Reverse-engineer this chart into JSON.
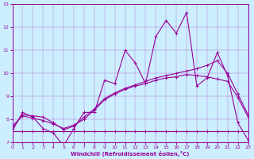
{
  "xlabel": "Windchill (Refroidissement éolien,°C)",
  "bg_color": "#cceeff",
  "line_color": "#990099",
  "xlim": [
    0,
    23
  ],
  "ylim": [
    7,
    13
  ],
  "xticks": [
    0,
    1,
    2,
    3,
    4,
    5,
    6,
    7,
    8,
    9,
    10,
    11,
    12,
    13,
    14,
    15,
    16,
    17,
    18,
    19,
    20,
    21,
    22,
    23
  ],
  "yticks": [
    7,
    8,
    9,
    10,
    11,
    12,
    13
  ],
  "series1_x": [
    0,
    1,
    2,
    3,
    4,
    5,
    6,
    7,
    8,
    9,
    10,
    11,
    12,
    13,
    14,
    15,
    16,
    17,
    18,
    19,
    20,
    21,
    22,
    23
  ],
  "series1_y": [
    7.5,
    8.3,
    8.1,
    7.6,
    7.4,
    6.85,
    7.6,
    8.3,
    8.3,
    9.7,
    9.55,
    11.0,
    10.45,
    9.55,
    11.6,
    12.3,
    11.75,
    12.65,
    9.45,
    9.8,
    10.9,
    9.9,
    7.85,
    7.1
  ],
  "series2_x": [
    0,
    1,
    2,
    3,
    4,
    5,
    6,
    7,
    8,
    9,
    10,
    11,
    12,
    13,
    14,
    15,
    16,
    17,
    18,
    19,
    20,
    21,
    22,
    23
  ],
  "series2_y": [
    7.6,
    8.2,
    8.15,
    8.1,
    7.85,
    7.55,
    7.7,
    8.1,
    8.45,
    8.9,
    9.15,
    9.35,
    9.5,
    9.65,
    9.8,
    9.9,
    10.0,
    10.1,
    10.2,
    10.35,
    10.55,
    10.0,
    9.1,
    8.2
  ],
  "series3_x": [
    0,
    1,
    2,
    3,
    4,
    5,
    6,
    7,
    8,
    9,
    10,
    11,
    12,
    13,
    14,
    15,
    16,
    17,
    18,
    19,
    20,
    21,
    22,
    23
  ],
  "series3_y": [
    7.7,
    8.15,
    8.05,
    7.95,
    7.8,
    7.6,
    7.75,
    8.0,
    8.4,
    8.85,
    9.1,
    9.3,
    9.45,
    9.55,
    9.7,
    9.8,
    9.85,
    9.95,
    9.9,
    9.85,
    9.75,
    9.65,
    8.95,
    8.1
  ],
  "series4_x": [
    0,
    1,
    2,
    3,
    4,
    5,
    6,
    7,
    8,
    9,
    10,
    11,
    12,
    13,
    14,
    15,
    16,
    17,
    18,
    19,
    20,
    21,
    22,
    23
  ],
  "series4_y": [
    7.5,
    7.5,
    7.5,
    7.5,
    7.5,
    7.5,
    7.5,
    7.5,
    7.5,
    7.5,
    7.5,
    7.5,
    7.5,
    7.5,
    7.5,
    7.5,
    7.5,
    7.5,
    7.5,
    7.5,
    7.5,
    7.5,
    7.5,
    7.5
  ],
  "marker": "+",
  "marker_size": 3,
  "linewidth": 0.8
}
